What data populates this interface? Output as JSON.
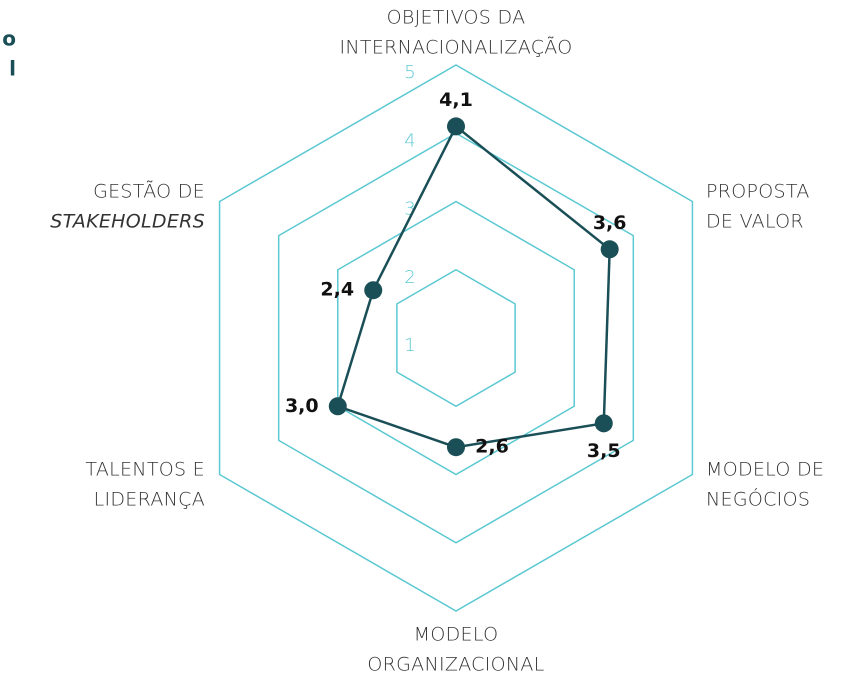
{
  "chart_data": {
    "type": "radar",
    "heading_fragments": [
      "o",
      "l"
    ],
    "categories": [
      [
        "OBJETIVOS DA",
        "INTERNACIONALIZAÇÃO"
      ],
      [
        "PROPOSTA",
        "DE VALOR"
      ],
      [
        "MODELO DE",
        "NEGÓCIOS"
      ],
      [
        "MODELO",
        "ORGANIZACIONAL"
      ],
      [
        "TALENTOS E",
        "LIDERANÇA"
      ],
      [
        "GESTÃO DE",
        "STAKEHOLDERS"
      ]
    ],
    "values": [
      4.1,
      3.6,
      3.5,
      2.6,
      3.0,
      2.4
    ],
    "value_labels": [
      "4,1",
      "3,6",
      "3,5",
      "2,6",
      "3,0",
      "2,4"
    ],
    "color": "#1b4f57",
    "grid_color": "#5bc8d2",
    "rlim": [
      1,
      5
    ],
    "rticks": [
      1,
      2,
      3,
      4,
      5
    ]
  }
}
